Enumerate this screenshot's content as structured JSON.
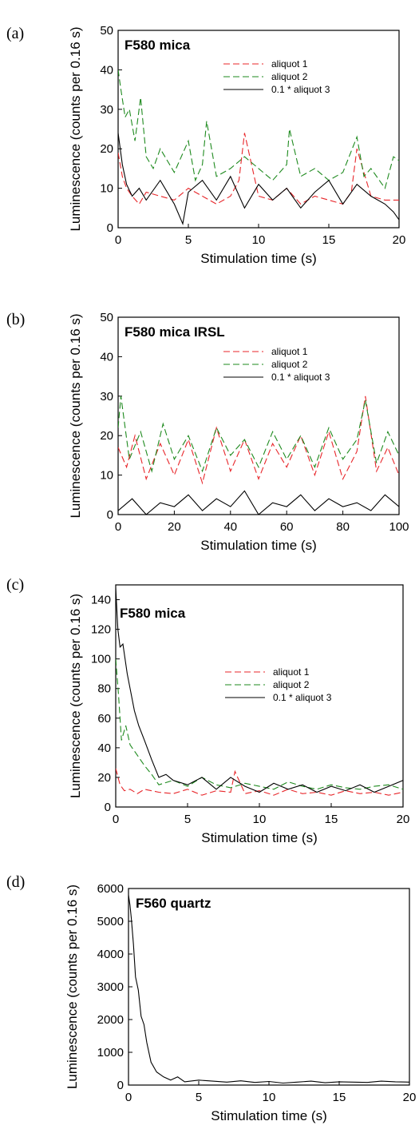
{
  "chart_data": [
    {
      "type": "line",
      "panel_label": "(a)",
      "title": "F580 mica",
      "xlabel": "Stimulation time (s)",
      "ylabel": "Luminescence (counts per 0.16 s)",
      "xlim": [
        0,
        20
      ],
      "ylim": [
        0,
        50
      ],
      "xticks": [
        0,
        5,
        10,
        15,
        20
      ],
      "yticks": [
        0,
        10,
        20,
        30,
        40,
        50
      ],
      "grid": false,
      "legend_position": "top-right",
      "series": [
        {
          "name": "aliquot 1",
          "color": "#e8262a",
          "dash": "dashed",
          "x": [
            0,
            0.3,
            0.6,
            1,
            1.5,
            2,
            3,
            4,
            5,
            6,
            7,
            8,
            8.6,
            9,
            10,
            11,
            12,
            13,
            14,
            15,
            16,
            16.6,
            17,
            18,
            19,
            20
          ],
          "y": [
            19,
            13,
            10,
            8,
            6,
            9,
            8,
            7,
            10,
            8,
            6,
            8,
            12,
            24,
            8,
            7,
            10,
            6,
            8,
            7,
            6,
            9,
            20,
            8,
            7,
            7
          ]
        },
        {
          "name": "aliquot 2",
          "color": "#1e8a1e",
          "dash": "dashed",
          "x": [
            0,
            0.2,
            0.5,
            0.8,
            1.2,
            1.6,
            2,
            2.5,
            3,
            4,
            5,
            5.5,
            6,
            6.3,
            7,
            8,
            9,
            10,
            11,
            12,
            12.2,
            13,
            14,
            15,
            16,
            17,
            17.5,
            18,
            19,
            19.6,
            20
          ],
          "y": [
            40,
            35,
            28,
            30,
            22,
            33,
            18,
            15,
            20,
            14,
            22,
            12,
            16,
            27,
            13,
            15,
            18,
            15,
            12,
            16,
            25,
            13,
            15,
            12,
            14,
            23,
            13,
            15,
            10,
            18,
            17
          ]
        },
        {
          "name": "0.1 * aliquot 3",
          "color": "#000000",
          "dash": "solid",
          "x": [
            0,
            0.3,
            0.6,
            1,
            1.5,
            2,
            3,
            4,
            4.6,
            5,
            6,
            7,
            8,
            9,
            10,
            11,
            12,
            13,
            14,
            15,
            16,
            17,
            18,
            19,
            19.6,
            20
          ],
          "y": [
            24,
            16,
            11,
            8,
            10,
            7,
            12,
            6,
            1,
            9,
            12,
            7,
            13,
            5,
            11,
            7,
            10,
            5,
            9,
            12,
            6,
            11,
            8,
            6,
            4,
            2
          ]
        }
      ]
    },
    {
      "type": "line",
      "panel_label": "(b)",
      "title": "F580 mica IRSL",
      "xlabel": "Stimulation time (s)",
      "ylabel": "Luminescence (counts per 0.16 s)",
      "xlim": [
        0,
        100
      ],
      "ylim": [
        0,
        50
      ],
      "xticks": [
        0,
        20,
        40,
        60,
        80,
        100
      ],
      "yticks": [
        0,
        10,
        20,
        30,
        40,
        50
      ],
      "grid": false,
      "legend_position": "top-right",
      "series": [
        {
          "name": "aliquot 1",
          "color": "#e8262a",
          "dash": "dashed",
          "x": [
            0,
            3,
            6,
            10,
            15,
            20,
            25,
            30,
            35,
            40,
            45,
            50,
            55,
            60,
            65,
            70,
            75,
            80,
            85,
            88,
            92,
            96,
            100
          ],
          "y": [
            17,
            12,
            20,
            9,
            18,
            10,
            19,
            8,
            22,
            11,
            19,
            9,
            18,
            12,
            20,
            10,
            21,
            9,
            16,
            30,
            11,
            17,
            10
          ]
        },
        {
          "name": "aliquot 2",
          "color": "#1e8a1e",
          "dash": "dashed",
          "x": [
            0,
            1,
            4,
            8,
            12,
            16,
            20,
            25,
            30,
            35,
            40,
            45,
            50,
            55,
            60,
            65,
            70,
            75,
            80,
            85,
            88,
            92,
            96,
            100
          ],
          "y": [
            22,
            30,
            14,
            21,
            11,
            23,
            14,
            20,
            11,
            22,
            15,
            19,
            12,
            21,
            14,
            20,
            12,
            22,
            14,
            19,
            29,
            13,
            21,
            15
          ]
        },
        {
          "name": "0.1 * aliquot 3",
          "color": "#000000",
          "dash": "solid",
          "x": [
            0,
            5,
            10,
            15,
            20,
            25,
            30,
            35,
            40,
            45,
            50,
            55,
            60,
            65,
            70,
            75,
            80,
            85,
            90,
            95,
            100
          ],
          "y": [
            1,
            4,
            0,
            3,
            2,
            5,
            1,
            4,
            2,
            6,
            0,
            3,
            2,
            5,
            1,
            4,
            2,
            3,
            1,
            5,
            2
          ]
        }
      ]
    },
    {
      "type": "line",
      "panel_label": "(c)",
      "title": "F580 mica",
      "xlabel": "Stimulation time (s)",
      "ylabel": "Luminescence (counts per 0.16 s)",
      "xlim": [
        0,
        20
      ],
      "ylim": [
        0,
        150
      ],
      "xticks": [
        0,
        5,
        10,
        15,
        20
      ],
      "yticks": [
        0,
        20,
        40,
        60,
        80,
        100,
        120,
        140
      ],
      "grid": false,
      "legend_position": "right",
      "series": [
        {
          "name": "aliquot 1",
          "color": "#e8262a",
          "dash": "dashed",
          "x": [
            0,
            0.3,
            0.6,
            1,
            1.5,
            2,
            3,
            4,
            5,
            6,
            7,
            8,
            8.3,
            9,
            10,
            11,
            12,
            13,
            14,
            15,
            16,
            17,
            18,
            19,
            20
          ],
          "y": [
            26,
            15,
            11,
            12,
            9,
            12,
            10,
            9,
            12,
            8,
            11,
            10,
            24,
            9,
            11,
            8,
            12,
            9,
            10,
            8,
            11,
            9,
            10,
            8,
            10
          ]
        },
        {
          "name": "aliquot 2",
          "color": "#1e8a1e",
          "dash": "dashed",
          "x": [
            0,
            0.2,
            0.4,
            0.7,
            1,
            1.5,
            2,
            2.5,
            3,
            4,
            5,
            6,
            7,
            8,
            9,
            10,
            11,
            12,
            13,
            14,
            15,
            16,
            17,
            18,
            19,
            20
          ],
          "y": [
            100,
            75,
            45,
            55,
            42,
            35,
            28,
            22,
            15,
            18,
            14,
            20,
            15,
            13,
            16,
            14,
            12,
            17,
            14,
            12,
            15,
            13,
            12,
            14,
            15,
            12
          ]
        },
        {
          "name": "0.1 * aliquot 3",
          "color": "#000000",
          "dash": "solid",
          "x": [
            0,
            0.15,
            0.3,
            0.5,
            0.8,
            1,
            1.3,
            1.6,
            2,
            2.5,
            3,
            3.5,
            4,
            5,
            6,
            7,
            8,
            9,
            10,
            11,
            12,
            13,
            14,
            15,
            16,
            17,
            18,
            19,
            20
          ],
          "y": [
            148,
            120,
            108,
            110,
            90,
            80,
            65,
            55,
            45,
            32,
            20,
            22,
            18,
            15,
            20,
            12,
            20,
            14,
            10,
            16,
            12,
            15,
            10,
            14,
            11,
            15,
            10,
            14,
            18
          ]
        }
      ]
    },
    {
      "type": "line",
      "panel_label": "(d)",
      "title": "F560 quartz",
      "xlabel": "Stimulation time (s)",
      "ylabel": "Luminescence (counts per 0.16 s)",
      "xlim": [
        0,
        20
      ],
      "ylim": [
        0,
        6000
      ],
      "xticks": [
        0,
        5,
        10,
        15,
        20
      ],
      "yticks": [
        0,
        1000,
        2000,
        3000,
        4000,
        5000,
        6000
      ],
      "grid": false,
      "legend_position": "none",
      "series": [
        {
          "color": "#000000",
          "dash": "solid",
          "x": [
            0,
            0.1,
            0.2,
            0.35,
            0.5,
            0.7,
            0.9,
            1.1,
            1.3,
            1.6,
            2,
            2.5,
            3,
            3.5,
            4,
            5,
            6,
            7,
            8,
            9,
            10,
            11,
            12,
            13,
            14,
            15,
            16,
            17,
            18,
            19,
            20
          ],
          "y": [
            5800,
            5500,
            5100,
            4300,
            3300,
            2900,
            2100,
            1850,
            1300,
            700,
            400,
            250,
            150,
            250,
            100,
            150,
            120,
            90,
            130,
            80,
            110,
            60,
            90,
            120,
            70,
            100,
            90,
            80,
            120,
            100,
            90
          ]
        }
      ]
    }
  ]
}
